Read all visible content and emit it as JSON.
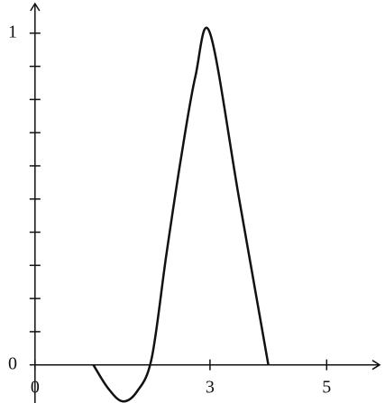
{
  "chart_data": {
    "type": "line",
    "x": [
      1,
      1.25,
      1.5,
      1.75,
      2,
      2.25,
      2.5,
      2.75,
      3,
      3.5,
      4
    ],
    "values": [
      0,
      -0.07,
      -0.11,
      -0.08,
      0.02,
      0.33,
      0.62,
      0.87,
      1,
      0.5,
      0
    ],
    "color": "#111111",
    "xlim": [
      -0.6,
      6.0
    ],
    "ylim": [
      -0.115,
      1.1
    ],
    "xticks": [
      0,
      3,
      5
    ],
    "yticks": [
      0,
      1
    ],
    "y_minor_ticks": [
      0.1,
      0.2,
      0.3,
      0.4,
      0.5,
      0.6,
      0.7,
      0.8,
      0.9
    ],
    "grid": false
  }
}
